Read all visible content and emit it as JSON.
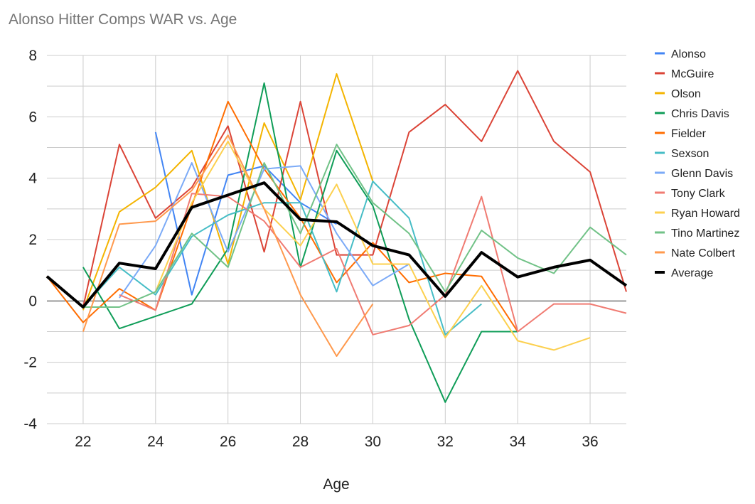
{
  "chart_data": {
    "type": "line",
    "title": "Alonso Hitter Comps WAR vs. Age",
    "xlabel": "Age",
    "ylabel": "",
    "xlim": [
      21,
      37
    ],
    "ylim": [
      -4,
      8
    ],
    "xticks": [
      22,
      24,
      26,
      28,
      30,
      32,
      34,
      36
    ],
    "yticks": [
      -4,
      -2,
      0,
      2,
      4,
      6,
      8
    ],
    "grid": true,
    "legend_position": "right",
    "series": [
      {
        "name": "Alonso",
        "color": "#4285f4",
        "width": 2,
        "points": [
          [
            24,
            5.5
          ],
          [
            25,
            0.2
          ],
          [
            26,
            4.1
          ],
          [
            27,
            4.4
          ],
          [
            28,
            3.2
          ],
          [
            29,
            2.5
          ]
        ]
      },
      {
        "name": "McGuire",
        "color": "#db4437",
        "width": 2,
        "points": [
          [
            22,
            -0.2
          ],
          [
            23,
            5.1
          ],
          [
            24,
            2.7
          ],
          [
            25,
            3.7
          ],
          [
            26,
            5.7
          ],
          [
            27,
            1.6
          ],
          [
            28,
            6.5
          ],
          [
            29,
            1.5
          ],
          [
            30,
            1.5
          ],
          [
            31,
            5.5
          ],
          [
            32,
            6.4
          ],
          [
            33,
            5.2
          ],
          [
            34,
            7.5
          ],
          [
            35,
            5.2
          ],
          [
            36,
            4.2
          ],
          [
            37,
            0.3
          ]
        ]
      },
      {
        "name": "Olson",
        "color": "#f4b400",
        "width": 2,
        "points": [
          [
            22,
            -0.3
          ],
          [
            23,
            2.9
          ],
          [
            24,
            3.7
          ],
          [
            25,
            4.9
          ],
          [
            26,
            1.2
          ],
          [
            27,
            5.8
          ],
          [
            28,
            3.3
          ],
          [
            29,
            7.4
          ],
          [
            30,
            3.9
          ]
        ]
      },
      {
        "name": "Chris Davis",
        "color": "#0f9d58",
        "width": 2,
        "points": [
          [
            22,
            1.1
          ],
          [
            23,
            -0.9
          ],
          [
            24,
            -0.5
          ],
          [
            25,
            -0.1
          ],
          [
            26,
            1.7
          ],
          [
            27,
            7.1
          ],
          [
            28,
            1.1
          ],
          [
            29,
            4.9
          ],
          [
            30,
            3.1
          ],
          [
            31,
            -0.6
          ],
          [
            32,
            -3.3
          ],
          [
            33,
            -1.0
          ],
          [
            34,
            -1.0
          ]
        ]
      },
      {
        "name": "Fielder",
        "color": "#ff6d01",
        "width": 2,
        "points": [
          [
            21,
            0.8
          ],
          [
            22,
            -0.7
          ],
          [
            23,
            0.4
          ],
          [
            24,
            -0.3
          ],
          [
            26,
            6.5
          ],
          [
            27,
            4.3
          ],
          [
            28,
            2.7
          ],
          [
            29,
            0.6
          ],
          [
            30,
            1.9
          ],
          [
            31,
            0.6
          ],
          [
            32,
            0.9
          ],
          [
            33,
            0.8
          ],
          [
            34,
            -1.0
          ]
        ]
      },
      {
        "name": "Sexson",
        "color": "#46bdc6",
        "width": 2,
        "points": [
          [
            22,
            -0.2
          ],
          [
            23,
            1.1
          ],
          [
            24,
            0.2
          ],
          [
            25,
            2.1
          ],
          [
            26,
            2.8
          ],
          [
            27,
            3.2
          ],
          [
            28,
            3.2
          ],
          [
            29,
            0.3
          ],
          [
            30,
            3.9
          ],
          [
            31,
            2.7
          ],
          [
            32,
            -1.1
          ],
          [
            33,
            -0.1
          ]
        ]
      },
      {
        "name": "Glenn Davis",
        "color": "#7baaf7",
        "width": 2,
        "points": [
          [
            23,
            0.1
          ],
          [
            24,
            1.8
          ],
          [
            25,
            4.5
          ],
          [
            26,
            1.6
          ],
          [
            27,
            4.3
          ],
          [
            28,
            4.4
          ],
          [
            29,
            2.2
          ],
          [
            30,
            0.5
          ],
          [
            31,
            1.2
          ]
        ]
      },
      {
        "name": "Tony Clark",
        "color": "#f07b72",
        "width": 2,
        "points": [
          [
            23,
            0.2
          ],
          [
            24,
            -0.3
          ],
          [
            25,
            3.5
          ],
          [
            26,
            3.4
          ],
          [
            27,
            2.6
          ],
          [
            28,
            1.1
          ],
          [
            29,
            1.7
          ],
          [
            30,
            -1.1
          ],
          [
            31,
            -0.8
          ],
          [
            32,
            0.2
          ],
          [
            33,
            3.4
          ],
          [
            34,
            -1.0
          ],
          [
            35,
            -0.1
          ],
          [
            36,
            -0.1
          ],
          [
            37,
            -0.4
          ]
        ]
      },
      {
        "name": "Ryan Howard",
        "color": "#fcd04f",
        "width": 2,
        "points": [
          [
            24,
            0.3
          ],
          [
            25,
            3.2
          ],
          [
            26,
            5.2
          ],
          [
            27,
            3.0
          ],
          [
            28,
            1.8
          ],
          [
            29,
            3.8
          ],
          [
            30,
            1.2
          ],
          [
            31,
            1.2
          ],
          [
            32,
            -1.2
          ],
          [
            33,
            0.5
          ],
          [
            34,
            -1.3
          ],
          [
            35,
            -1.6
          ],
          [
            36,
            -1.2
          ]
        ]
      },
      {
        "name": "Tino Martinez",
        "color": "#71c287",
        "width": 2,
        "points": [
          [
            22,
            -0.2
          ],
          [
            23,
            -0.2
          ],
          [
            24,
            0.3
          ],
          [
            25,
            2.2
          ],
          [
            26,
            1.1
          ],
          [
            27,
            4.5
          ],
          [
            28,
            2.2
          ],
          [
            29,
            5.1
          ],
          [
            30,
            3.2
          ],
          [
            31,
            2.2
          ],
          [
            32,
            0.3
          ],
          [
            33,
            2.3
          ],
          [
            34,
            1.4
          ],
          [
            35,
            0.9
          ],
          [
            36,
            2.4
          ],
          [
            37,
            1.5
          ]
        ]
      },
      {
        "name": "Nate Colbert",
        "color": "#ff994d",
        "width": 2,
        "points": [
          [
            22,
            -1.0
          ],
          [
            23,
            2.5
          ],
          [
            24,
            2.6
          ],
          [
            25,
            3.6
          ],
          [
            26,
            5.4
          ],
          [
            27,
            3.0
          ],
          [
            28,
            0.2
          ],
          [
            29,
            -1.8
          ],
          [
            30,
            -0.1
          ]
        ]
      },
      {
        "name": "Average",
        "color": "#000000",
        "width": 4,
        "points": [
          [
            21,
            0.8
          ],
          [
            22,
            -0.2
          ],
          [
            23,
            1.23
          ],
          [
            24,
            1.05
          ],
          [
            25,
            3.05
          ],
          [
            26,
            3.45
          ],
          [
            27,
            3.85
          ],
          [
            28,
            2.65
          ],
          [
            29,
            2.58
          ],
          [
            30,
            1.8
          ],
          [
            31,
            1.5
          ],
          [
            32,
            0.15
          ],
          [
            33,
            1.58
          ],
          [
            34,
            0.78
          ],
          [
            35,
            1.1
          ],
          [
            36,
            1.33
          ],
          [
            37,
            0.5
          ]
        ]
      }
    ]
  }
}
